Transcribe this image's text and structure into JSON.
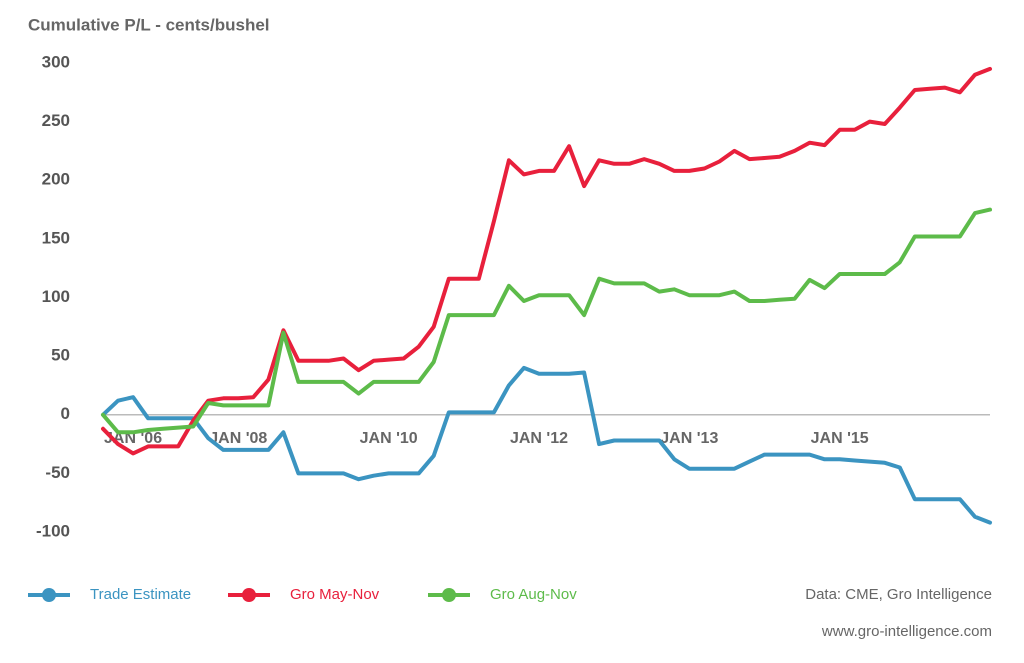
{
  "chart_data": {
    "type": "line",
    "title": "Cumulative P/L - cents/bushel",
    "source": "Data: CME, Gro Intelligence",
    "website": "www.gro-intelligence.com",
    "categories": [
      null,
      null,
      "JAN '06",
      null,
      null,
      null,
      null,
      null,
      null,
      "JAN '08",
      null,
      null,
      null,
      null,
      null,
      null,
      null,
      null,
      null,
      "JAN '10",
      null,
      null,
      null,
      null,
      null,
      null,
      null,
      null,
      null,
      "JAN '12",
      null,
      null,
      null,
      null,
      null,
      null,
      null,
      null,
      null,
      "JAN '13",
      null,
      null,
      null,
      null,
      null,
      null,
      null,
      null,
      null,
      "JAN '15",
      null,
      null,
      null,
      null,
      null,
      null,
      null,
      null,
      null,
      null
    ],
    "series": [
      {
        "name": "Trade Estimate",
        "color": "#3b94c1",
        "values": [
          0,
          12,
          15,
          -3,
          -3,
          -3,
          -3,
          -20,
          -30,
          -30,
          -30,
          -30,
          -15,
          -50,
          -50,
          -50,
          -50,
          -55,
          -52,
          -50,
          -50,
          -50,
          -35,
          2,
          2,
          2,
          2,
          25,
          40,
          35,
          35,
          35,
          36,
          -25,
          -22,
          -22,
          -22,
          -22,
          -38,
          -46,
          -46,
          -46,
          -46,
          -40,
          -34,
          -34,
          -34,
          -34,
          -38,
          -38,
          -39,
          -40,
          -41,
          -45,
          -72,
          -72,
          -72,
          -72,
          -87,
          -92
        ]
      },
      {
        "name": "Gro May-Nov",
        "color": "#e8203c",
        "values": [
          -12,
          -25,
          -33,
          -27,
          -27,
          -27,
          -5,
          12,
          14,
          14,
          15,
          30,
          72,
          46,
          46,
          46,
          48,
          38,
          46,
          47,
          48,
          58,
          75,
          116,
          116,
          116,
          165,
          217,
          205,
          208,
          208,
          229,
          195,
          217,
          214,
          214,
          218,
          214,
          208,
          208,
          210,
          216,
          225,
          218,
          219,
          220,
          225,
          232,
          230,
          243,
          243,
          250,
          248,
          262,
          277,
          278,
          279,
          275,
          290,
          295
        ]
      },
      {
        "name": "Gro Aug-Nov",
        "color": "#5dbb4a",
        "values": [
          0,
          -15,
          -15,
          -13,
          -12,
          -11,
          -10,
          10,
          8,
          8,
          8,
          8,
          70,
          28,
          28,
          28,
          28,
          18,
          28,
          28,
          28,
          28,
          45,
          85,
          85,
          85,
          85,
          110,
          97,
          102,
          102,
          102,
          85,
          116,
          112,
          112,
          112,
          105,
          107,
          102,
          102,
          102,
          105,
          97,
          97,
          98,
          99,
          115,
          108,
          120,
          120,
          120,
          120,
          130,
          152,
          152,
          152,
          152,
          172,
          175
        ]
      }
    ],
    "ylim": [
      -100,
      300
    ],
    "yticks": [
      -100,
      -50,
      0,
      50,
      100,
      150,
      200,
      250,
      300
    ],
    "grid": false
  }
}
